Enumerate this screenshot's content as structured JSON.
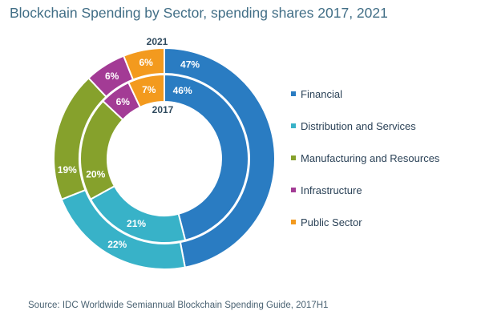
{
  "chart_data": {
    "type": "donut",
    "title": "Blockchain Spending by Sector, spending shares 2017, 2021",
    "categories": [
      "Financial",
      "Distribution and Services",
      "Manufacturing and Resources",
      "Infrastructure",
      "Public Sector"
    ],
    "colors": [
      "#2a7cc2",
      "#38b2c8",
      "#86a12c",
      "#a33b95",
      "#f39a1e"
    ],
    "series": [
      {
        "name": "2021",
        "ring": "outer",
        "values": [
          47,
          22,
          19,
          6,
          6
        ],
        "labels": [
          "47%",
          "22%",
          "19%",
          "6%",
          "6%"
        ]
      },
      {
        "name": "2017",
        "ring": "inner",
        "values": [
          46,
          21,
          20,
          6,
          7
        ],
        "labels": [
          "46%",
          "21%",
          "20%",
          "6%",
          "7%"
        ]
      }
    ],
    "unit": "%",
    "legend_position": "right"
  },
  "legend": [
    "Financial",
    "Distribution and Services",
    "Manufacturing and Resources",
    "Infrastructure",
    "Public Sector"
  ],
  "year_labels": {
    "outer": "2021",
    "inner": "2017"
  },
  "source": "Source: IDC Worldwide Semiannual Blockchain Spending Guide, 2017H1"
}
